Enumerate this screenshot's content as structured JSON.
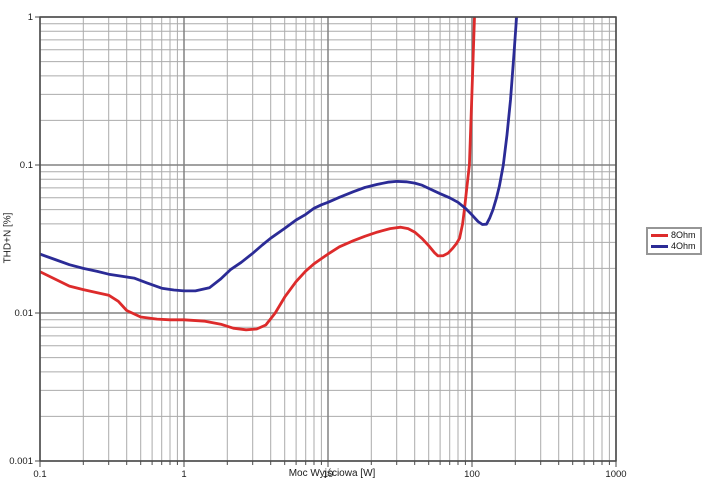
{
  "chart_data": {
    "type": "line",
    "title": "",
    "xlabel": "Moc Wyjściowa [W]",
    "ylabel": "THD+N [%]",
    "x_scale": "log",
    "y_scale": "log",
    "xlim": [
      0.1,
      1000
    ],
    "ylim": [
      0.001,
      1
    ],
    "x_tick_labels": [
      "0.1",
      "1",
      "10",
      "100",
      "1000"
    ],
    "y_tick_labels": [
      "1",
      "0.1",
      "0.01",
      "0.001"
    ],
    "grid": "log major and minor gridlines, full plot",
    "legend_position": "outside-right",
    "colors": {
      "grid_minor": "#ababab",
      "grid_major": "#828282",
      "axis_border": "#4a4a4a",
      "tick": "#4a4a4a",
      "label_text": "#1a1a1a"
    },
    "series": [
      {
        "name": "8Ohm",
        "color": "#dd2b2b",
        "points": [
          [
            0.1,
            0.019
          ],
          [
            0.13,
            0.0168
          ],
          [
            0.16,
            0.0152
          ],
          [
            0.2,
            0.0144
          ],
          [
            0.25,
            0.0137
          ],
          [
            0.3,
            0.0132
          ],
          [
            0.35,
            0.012
          ],
          [
            0.4,
            0.0104
          ],
          [
            0.5,
            0.0094
          ],
          [
            0.65,
            0.0091
          ],
          [
            0.8,
            0.009
          ],
          [
            1.0,
            0.009
          ],
          [
            1.4,
            0.0088
          ],
          [
            1.8,
            0.0084
          ],
          [
            2.2,
            0.0079
          ],
          [
            2.7,
            0.0077
          ],
          [
            3.2,
            0.0078
          ],
          [
            3.7,
            0.0083
          ],
          [
            4.3,
            0.01
          ],
          [
            5,
            0.0128
          ],
          [
            6,
            0.0163
          ],
          [
            7,
            0.0192
          ],
          [
            8,
            0.0215
          ],
          [
            9,
            0.0233
          ],
          [
            10,
            0.025
          ],
          [
            12,
            0.028
          ],
          [
            15,
            0.0308
          ],
          [
            18,
            0.033
          ],
          [
            22,
            0.0352
          ],
          [
            27,
            0.0372
          ],
          [
            32,
            0.038
          ],
          [
            36,
            0.0372
          ],
          [
            40,
            0.0352
          ],
          [
            45,
            0.0318
          ],
          [
            50,
            0.0285
          ],
          [
            55,
            0.0255
          ],
          [
            58,
            0.0243
          ],
          [
            63,
            0.0244
          ],
          [
            68,
            0.0253
          ],
          [
            73,
            0.0272
          ],
          [
            78,
            0.0295
          ],
          [
            82,
            0.032
          ],
          [
            86,
            0.04
          ],
          [
            88.5,
            0.05
          ],
          [
            92,
            0.07
          ],
          [
            96,
            0.1
          ],
          [
            99.5,
            0.275
          ],
          [
            102,
            0.55
          ],
          [
            104.5,
            1.15
          ]
        ]
      },
      {
        "name": "4Ohm",
        "color": "#2b2b96",
        "points": [
          [
            0.1,
            0.025
          ],
          [
            0.13,
            0.0228
          ],
          [
            0.16,
            0.0212
          ],
          [
            0.2,
            0.02
          ],
          [
            0.25,
            0.0191
          ],
          [
            0.3,
            0.0183
          ],
          [
            0.37,
            0.0177
          ],
          [
            0.45,
            0.0172
          ],
          [
            0.55,
            0.016
          ],
          [
            0.7,
            0.0147
          ],
          [
            0.85,
            0.0143
          ],
          [
            1.0,
            0.0141
          ],
          [
            1.2,
            0.0141
          ],
          [
            1.5,
            0.0148
          ],
          [
            1.8,
            0.017
          ],
          [
            2.1,
            0.0196
          ],
          [
            2.5,
            0.022
          ],
          [
            3,
            0.0253
          ],
          [
            3.5,
            0.0288
          ],
          [
            4,
            0.032
          ],
          [
            5,
            0.0373
          ],
          [
            6,
            0.0425
          ],
          [
            7,
            0.0464
          ],
          [
            8,
            0.051
          ],
          [
            9,
            0.0538
          ],
          [
            10,
            0.056
          ],
          [
            12,
            0.0605
          ],
          [
            15,
            0.066
          ],
          [
            18,
            0.0705
          ],
          [
            22,
            0.074
          ],
          [
            26,
            0.0765
          ],
          [
            30,
            0.0775
          ],
          [
            35,
            0.077
          ],
          [
            40,
            0.0755
          ],
          [
            45,
            0.073
          ],
          [
            50,
            0.0695
          ],
          [
            60,
            0.064
          ],
          [
            70,
            0.06
          ],
          [
            80,
            0.056
          ],
          [
            90,
            0.051
          ],
          [
            100,
            0.046
          ],
          [
            110,
            0.0415
          ],
          [
            118,
            0.0396
          ],
          [
            126,
            0.0398
          ],
          [
            133,
            0.044
          ],
          [
            140,
            0.05
          ],
          [
            148,
            0.06
          ],
          [
            155,
            0.072
          ],
          [
            165,
            0.1
          ],
          [
            175,
            0.16
          ],
          [
            185,
            0.275
          ],
          [
            196,
            0.58
          ],
          [
            206,
            1.15
          ]
        ]
      }
    ]
  }
}
